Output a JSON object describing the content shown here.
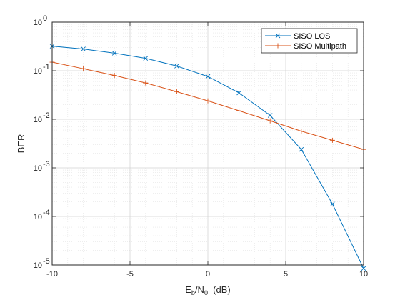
{
  "chart_data": {
    "type": "line",
    "xlabel": {
      "main": "E",
      "sub1": "b",
      "mid": "/N",
      "sub2": "0",
      "tail": "  (dB)"
    },
    "ylabel": "BER",
    "x_scale": "linear",
    "y_scale": "log",
    "xlim": [
      -10,
      10
    ],
    "ylim": [
      1e-05,
      1
    ],
    "x_ticks": [
      -10,
      -5,
      0,
      5,
      10
    ],
    "x_tick_labels": [
      "-10",
      "-5",
      "0",
      "5",
      "10"
    ],
    "y_ticks": [
      1e-05,
      0.0001,
      0.001,
      0.01,
      0.1,
      1
    ],
    "y_tick_labels": [
      {
        "base": "10",
        "exp": "-5"
      },
      {
        "base": "10",
        "exp": "-4"
      },
      {
        "base": "10",
        "exp": "-3"
      },
      {
        "base": "10",
        "exp": "-2"
      },
      {
        "base": "10",
        "exp": "-1"
      },
      {
        "base": "10",
        "exp": "0"
      }
    ],
    "grid": true,
    "minor_grid": true,
    "legend_position": "top-right",
    "series": [
      {
        "name": "SISO LOS",
        "color": "#0072BD",
        "marker": "x",
        "x": [
          -10,
          -8,
          -6,
          -4,
          -2,
          0,
          2,
          4,
          6,
          8,
          10
        ],
        "y": [
          0.32,
          0.28,
          0.23,
          0.18,
          0.125,
          0.076,
          0.035,
          0.012,
          0.0024,
          0.00018,
          8.5e-06
        ]
      },
      {
        "name": "SISO Multipath",
        "color": "#D95319",
        "marker": "+",
        "x": [
          -10,
          -8,
          -6,
          -4,
          -2,
          0,
          2,
          4,
          6,
          8,
          10
        ],
        "y": [
          0.15,
          0.11,
          0.08,
          0.056,
          0.037,
          0.024,
          0.015,
          0.0093,
          0.0057,
          0.0037,
          0.0024
        ]
      }
    ]
  }
}
